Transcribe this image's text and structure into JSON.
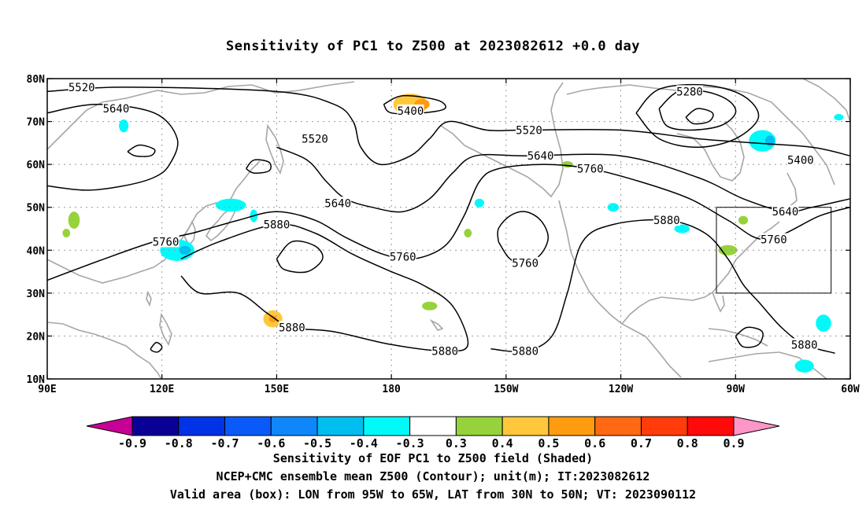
{
  "title": "Sensitivity of PC1 to Z500 at 2023082612 +0.0 day",
  "map": {
    "lon_range": [
      90,
      300
    ],
    "lat_range": [
      10,
      80
    ],
    "lon_ticks": [
      {
        "lon": 90,
        "label": "90E"
      },
      {
        "lon": 120,
        "label": "120E"
      },
      {
        "lon": 150,
        "label": "150E"
      },
      {
        "lon": 180,
        "label": "180"
      },
      {
        "lon": 210,
        "label": "150W"
      },
      {
        "lon": 240,
        "label": "120W"
      },
      {
        "lon": 270,
        "label": "90W"
      },
      {
        "lon": 300,
        "label": "60W"
      }
    ],
    "lat_ticks": [
      {
        "lat": 80,
        "label": "80N"
      },
      {
        "lat": 70,
        "label": "70N"
      },
      {
        "lat": 60,
        "label": "60N"
      },
      {
        "lat": 50,
        "label": "50N"
      },
      {
        "lat": 40,
        "label": "40N"
      },
      {
        "lat": 30,
        "label": "30N"
      },
      {
        "lat": 20,
        "label": "20N"
      },
      {
        "lat": 10,
        "label": "10N"
      }
    ],
    "grid": true,
    "valid_box": {
      "lon": [
        265,
        295
      ],
      "lat": [
        30,
        50
      ]
    },
    "contour_labels": [
      {
        "text": "5520",
        "lon": 99,
        "lat": 78
      },
      {
        "text": "5640",
        "lon": 108,
        "lat": 73
      },
      {
        "text": "5400",
        "lon": 185,
        "lat": 72.5
      },
      {
        "text": "5520",
        "lon": 160,
        "lat": 66
      },
      {
        "text": "5520",
        "lon": 216,
        "lat": 68
      },
      {
        "text": "5280",
        "lon": 258,
        "lat": 77
      },
      {
        "text": "5640",
        "lon": 219,
        "lat": 62
      },
      {
        "text": "5760",
        "lon": 232,
        "lat": 59
      },
      {
        "text": "5400",
        "lon": 287,
        "lat": 61
      },
      {
        "text": "5640",
        "lon": 166,
        "lat": 51
      },
      {
        "text": "5640",
        "lon": 283,
        "lat": 49
      },
      {
        "text": "5880",
        "lon": 150,
        "lat": 46
      },
      {
        "text": "5880",
        "lon": 252,
        "lat": 47
      },
      {
        "text": "5760",
        "lon": 121,
        "lat": 42
      },
      {
        "text": "5760",
        "lon": 280,
        "lat": 42.5
      },
      {
        "text": "5760",
        "lon": 183,
        "lat": 38.5
      },
      {
        "text": "5760",
        "lon": 215,
        "lat": 37
      },
      {
        "text": "5880",
        "lon": 154,
        "lat": 22
      },
      {
        "text": "5880",
        "lon": 194,
        "lat": 16.5
      },
      {
        "text": "5880",
        "lon": 215,
        "lat": 16.5
      },
      {
        "text": "5880",
        "lon": 288,
        "lat": 18
      }
    ],
    "contours": [
      {
        "level": 5520,
        "pts": [
          [
            90,
            77
          ],
          [
            110,
            78
          ],
          [
            150,
            77
          ],
          [
            165,
            74
          ],
          [
            170,
            70
          ],
          [
            172,
            64
          ],
          [
            177,
            60
          ],
          [
            185,
            62
          ],
          [
            190,
            66
          ],
          [
            195,
            70
          ],
          [
            205,
            68
          ],
          [
            215,
            68
          ],
          [
            240,
            68
          ],
          [
            260,
            66
          ],
          [
            275,
            65
          ],
          [
            290,
            64
          ],
          [
            300,
            62
          ]
        ]
      },
      {
        "level": 5640,
        "pts": [
          [
            90,
            72
          ],
          [
            103,
            74
          ],
          [
            118,
            72
          ],
          [
            124,
            66
          ],
          [
            122,
            60
          ],
          [
            118,
            57
          ],
          [
            110,
            55
          ],
          [
            100,
            54
          ],
          [
            90,
            55
          ]
        ]
      },
      {
        "level": 5640,
        "pts": [
          [
            150,
            64
          ],
          [
            158,
            61
          ],
          [
            163,
            56
          ],
          [
            168,
            52
          ],
          [
            175,
            50
          ],
          [
            183,
            49
          ],
          [
            190,
            52
          ],
          [
            196,
            58
          ],
          [
            202,
            62
          ],
          [
            215,
            62
          ],
          [
            240,
            62
          ],
          [
            260,
            57
          ],
          [
            272,
            52
          ],
          [
            283,
            49
          ],
          [
            290,
            50
          ],
          [
            300,
            52
          ]
        ]
      },
      {
        "level": 5760,
        "pts": [
          [
            90,
            33
          ],
          [
            105,
            38
          ],
          [
            118,
            42
          ],
          [
            128,
            44
          ],
          [
            140,
            47
          ],
          [
            150,
            49
          ],
          [
            160,
            47
          ],
          [
            168,
            43
          ],
          [
            178,
            39
          ],
          [
            186,
            38
          ],
          [
            194,
            41
          ],
          [
            199,
            48
          ],
          [
            203,
            56
          ],
          [
            208,
            59
          ],
          [
            220,
            60
          ],
          [
            232,
            59
          ],
          [
            245,
            56
          ],
          [
            258,
            52
          ],
          [
            268,
            47
          ],
          [
            278,
            42.5
          ],
          [
            292,
            48
          ],
          [
            300,
            50
          ]
        ]
      },
      {
        "level": 5880,
        "pts": [
          [
            125,
            38
          ],
          [
            135,
            42
          ],
          [
            150,
            46
          ],
          [
            160,
            44
          ],
          [
            170,
            39
          ],
          [
            180,
            35
          ],
          [
            188,
            32
          ],
          [
            196,
            27
          ],
          [
            200,
            18
          ],
          [
            194,
            16.5
          ],
          [
            180,
            18
          ],
          [
            165,
            21
          ],
          [
            154,
            22
          ],
          [
            148,
            25
          ],
          [
            140,
            30
          ],
          [
            130,
            30
          ],
          [
            125,
            34
          ]
        ]
      },
      {
        "level": 5880,
        "pts": [
          [
            206,
            17
          ],
          [
            215,
            16.5
          ],
          [
            222,
            20
          ],
          [
            226,
            30
          ],
          [
            230,
            42
          ],
          [
            238,
            46
          ],
          [
            252,
            47
          ],
          [
            262,
            44
          ],
          [
            268,
            38
          ],
          [
            272,
            32
          ],
          [
            276,
            28
          ],
          [
            282,
            22
          ],
          [
            288,
            18
          ],
          [
            296,
            16
          ]
        ]
      },
      {
        "level": 5760,
        "pts": [
          [
            208,
            42
          ],
          [
            211,
            38
          ],
          [
            215,
            37
          ],
          [
            219,
            39
          ],
          [
            221,
            43
          ],
          [
            219,
            47
          ],
          [
            215,
            49
          ],
          [
            211,
            48
          ],
          [
            208,
            45
          ],
          [
            208,
            42
          ]
        ]
      },
      {
        "level": 5280,
        "pts": [
          [
            250,
            73
          ],
          [
            255,
            77
          ],
          [
            262,
            77
          ],
          [
            268,
            75
          ],
          [
            270,
            72
          ],
          [
            266,
            69
          ],
          [
            258,
            68
          ],
          [
            252,
            69
          ],
          [
            250,
            73
          ]
        ]
      },
      {
        "level": 5400,
        "pts": [
          [
            244,
            72
          ],
          [
            250,
            77.5
          ],
          [
            262,
            78.5
          ],
          [
            272,
            76
          ],
          [
            276,
            71
          ],
          [
            270,
            66
          ],
          [
            260,
            64
          ],
          [
            250,
            66
          ],
          [
            244,
            72
          ]
        ]
      },
      {
        "level": 5400,
        "pts": [
          [
            178,
            74
          ],
          [
            183,
            76
          ],
          [
            192,
            75
          ],
          [
            194,
            73
          ],
          [
            188,
            72
          ],
          [
            180,
            72
          ],
          [
            178,
            74
          ]
        ]
      },
      {
        "level": 5160,
        "pts": [
          [
            257,
            71
          ],
          [
            260,
            73
          ],
          [
            264,
            72
          ],
          [
            263,
            70
          ],
          [
            259,
            69.5
          ],
          [
            257,
            71
          ]
        ]
      },
      {
        "level": 5520,
        "pts": [
          [
            111,
            63
          ],
          [
            114,
            64.5
          ],
          [
            118,
            63.5
          ],
          [
            117,
            62
          ],
          [
            113,
            62
          ],
          [
            111,
            63
          ]
        ]
      },
      {
        "level": 5520,
        "pts": [
          [
            142,
            59
          ],
          [
            144,
            61
          ],
          [
            148,
            60.5
          ],
          [
            148,
            58.5
          ],
          [
            144,
            58
          ],
          [
            142,
            59
          ]
        ]
      },
      {
        "level": 5880,
        "pts": [
          [
            150,
            38
          ],
          [
            154,
            42
          ],
          [
            160,
            41
          ],
          [
            162,
            38
          ],
          [
            158,
            35
          ],
          [
            152,
            35.5
          ],
          [
            150,
            38
          ]
        ]
      },
      {
        "level": 5880,
        "pts": [
          [
            270,
            20
          ],
          [
            273,
            22
          ],
          [
            277,
            21
          ],
          [
            276,
            18
          ],
          [
            272,
            17.5
          ],
          [
            270,
            20
          ]
        ]
      },
      {
        "level": 5880,
        "pts": [
          [
            117,
            17
          ],
          [
            118.5,
            18.5
          ],
          [
            120,
            17.5
          ],
          [
            119,
            16.3
          ],
          [
            117.5,
            16.5
          ],
          [
            117,
            17
          ]
        ]
      }
    ],
    "shaded_areas": [
      {
        "lon": 185,
        "lat": 74,
        "w": 9,
        "h": 5,
        "value": 0.4
      },
      {
        "lon": 188,
        "lat": 74,
        "w": 4,
        "h": 2.5,
        "value": 0.5
      },
      {
        "lon": 277,
        "lat": 65.5,
        "w": 7,
        "h": 5,
        "value": -0.4
      },
      {
        "lon": 279,
        "lat": 65.5,
        "w": 2.5,
        "h": 2.5,
        "value": -0.5
      },
      {
        "lon": 124,
        "lat": 40,
        "w": 9,
        "h": 5,
        "value": -0.4
      },
      {
        "lon": 126,
        "lat": 40,
        "w": 3,
        "h": 2,
        "value": -0.5
      },
      {
        "lon": 138,
        "lat": 50.5,
        "w": 8,
        "h": 3,
        "value": -0.4
      },
      {
        "lon": 149,
        "lat": 24,
        "w": 5,
        "h": 4,
        "value": 0.4
      },
      {
        "lon": 149,
        "lat": 24,
        "w": 2,
        "h": 1.6,
        "value": 0.5
      },
      {
        "lon": 97,
        "lat": 47,
        "w": 3,
        "h": 4,
        "value": 0.3
      },
      {
        "lon": 256,
        "lat": 45,
        "w": 4,
        "h": 2,
        "value": -0.4
      },
      {
        "lon": 268,
        "lat": 40,
        "w": 5,
        "h": 2.4,
        "value": 0.3
      },
      {
        "lon": 293,
        "lat": 23,
        "w": 4,
        "h": 4,
        "value": -0.4
      },
      {
        "lon": 288,
        "lat": 13,
        "w": 5,
        "h": 3,
        "value": -0.4
      },
      {
        "lon": 203,
        "lat": 51,
        "w": 2.5,
        "h": 2,
        "value": -0.4
      },
      {
        "lon": 110,
        "lat": 69,
        "w": 2.5,
        "h": 3,
        "value": -0.4
      },
      {
        "lon": 190,
        "lat": 27,
        "w": 4,
        "h": 2,
        "value": 0.3
      },
      {
        "lon": 272,
        "lat": 47,
        "w": 2.5,
        "h": 2,
        "value": 0.3
      },
      {
        "lon": 238,
        "lat": 50,
        "w": 3,
        "h": 2,
        "value": -0.4
      },
      {
        "lon": 226,
        "lat": 60,
        "w": 3,
        "h": 1.5,
        "value": 0.3
      },
      {
        "lon": 297,
        "lat": 71,
        "w": 2.5,
        "h": 1.5,
        "value": -0.4
      },
      {
        "lon": 200,
        "lat": 44,
        "w": 2,
        "h": 2,
        "value": 0.3
      },
      {
        "lon": 144,
        "lat": 48,
        "w": 2,
        "h": 3,
        "value": -0.4
      },
      {
        "lon": 95,
        "lat": 44,
        "w": 2,
        "h": 2,
        "value": 0.3
      }
    ]
  },
  "colorbar": {
    "ticks": [
      "-0.9",
      "-0.8",
      "-0.7",
      "-0.6",
      "-0.5",
      "-0.4",
      "-0.3",
      "0.3",
      "0.4",
      "0.5",
      "0.6",
      "0.7",
      "0.8",
      "0.9"
    ],
    "colors": [
      "#0a0096",
      "#0032e6",
      "#0a5afa",
      "#0f87fa",
      "#00bef0",
      "#00fafa",
      "#ffffff",
      "#96d23c",
      "#ffc83c",
      "#ff9b0f",
      "#ff6914",
      "#ff3c0a",
      "#ff0a0a"
    ],
    "low_end_color": "#c80096",
    "high_end_color": "#ff96c8"
  },
  "captions": [
    "Sensitivity of EOF PC1 to Z500 field (Shaded)",
    "NCEP+CMC ensemble mean Z500 (Contour); unit(m); IT:2023082612",
    "Valid area (box): LON from 95W to 65W, LAT from 30N to 50N; VT: 2023090112"
  ]
}
